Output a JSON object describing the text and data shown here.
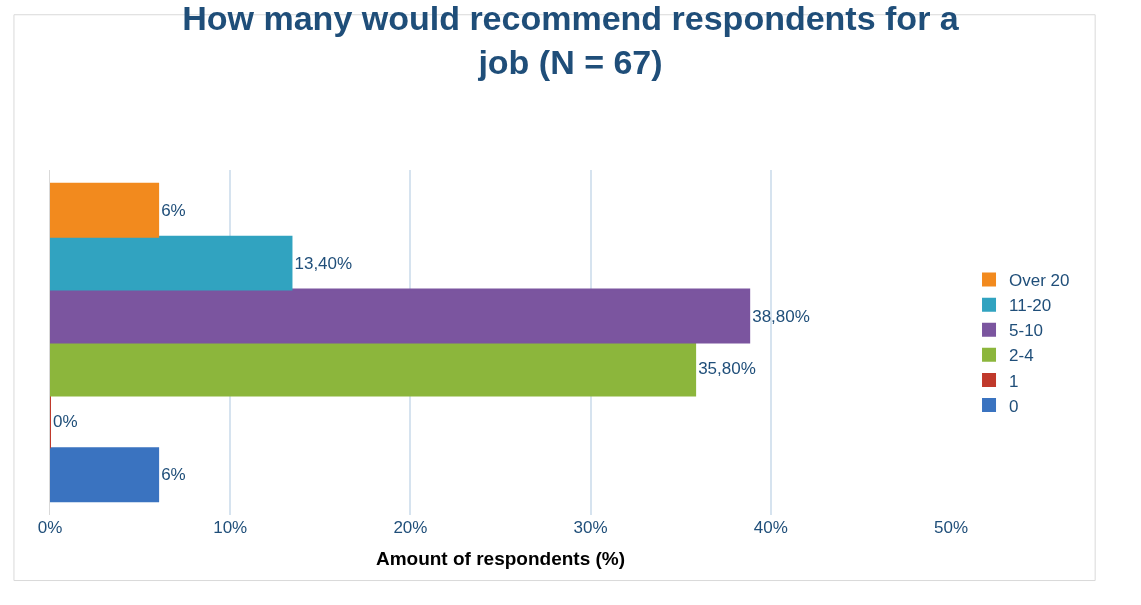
{
  "chart_data": {
    "type": "bar",
    "orientation": "horizontal",
    "title": "How many would recommend respondents for a job (N = 67)",
    "xlabel": "Amount of respondents (%)",
    "categories": [
      null
    ],
    "series": [
      {
        "name": "Over 20",
        "color": "#f28a1e",
        "values": [
          6
        ],
        "value_labels": [
          "6%"
        ]
      },
      {
        "name": "11-20",
        "color": "#31a3c0",
        "values": [
          13.4
        ],
        "value_labels": [
          "13,40%"
        ]
      },
      {
        "name": "5-10",
        "color": "#7b559f",
        "values": [
          38.8
        ],
        "value_labels": [
          "38,80%"
        ]
      },
      {
        "name": "2-4",
        "color": "#8cb63c",
        "values": [
          35.8
        ],
        "value_labels": [
          "35,80%"
        ]
      },
      {
        "name": "1",
        "color": "#c0392b",
        "values": [
          0
        ],
        "value_labels": [
          "0%"
        ]
      },
      {
        "name": "0",
        "color": "#3a73c0",
        "values": [
          6
        ],
        "value_labels": [
          "6%"
        ]
      }
    ],
    "xlim": [
      0,
      50
    ],
    "xticks": [
      {
        "value": 0,
        "label": "0%"
      },
      {
        "value": 10,
        "label": "10%"
      },
      {
        "value": 20,
        "label": "20%"
      },
      {
        "value": 30,
        "label": "30%"
      },
      {
        "value": 40,
        "label": "40%"
      },
      {
        "value": 50,
        "label": "50%"
      }
    ],
    "grid": "x",
    "legend": "right",
    "tick_labels": "x"
  }
}
